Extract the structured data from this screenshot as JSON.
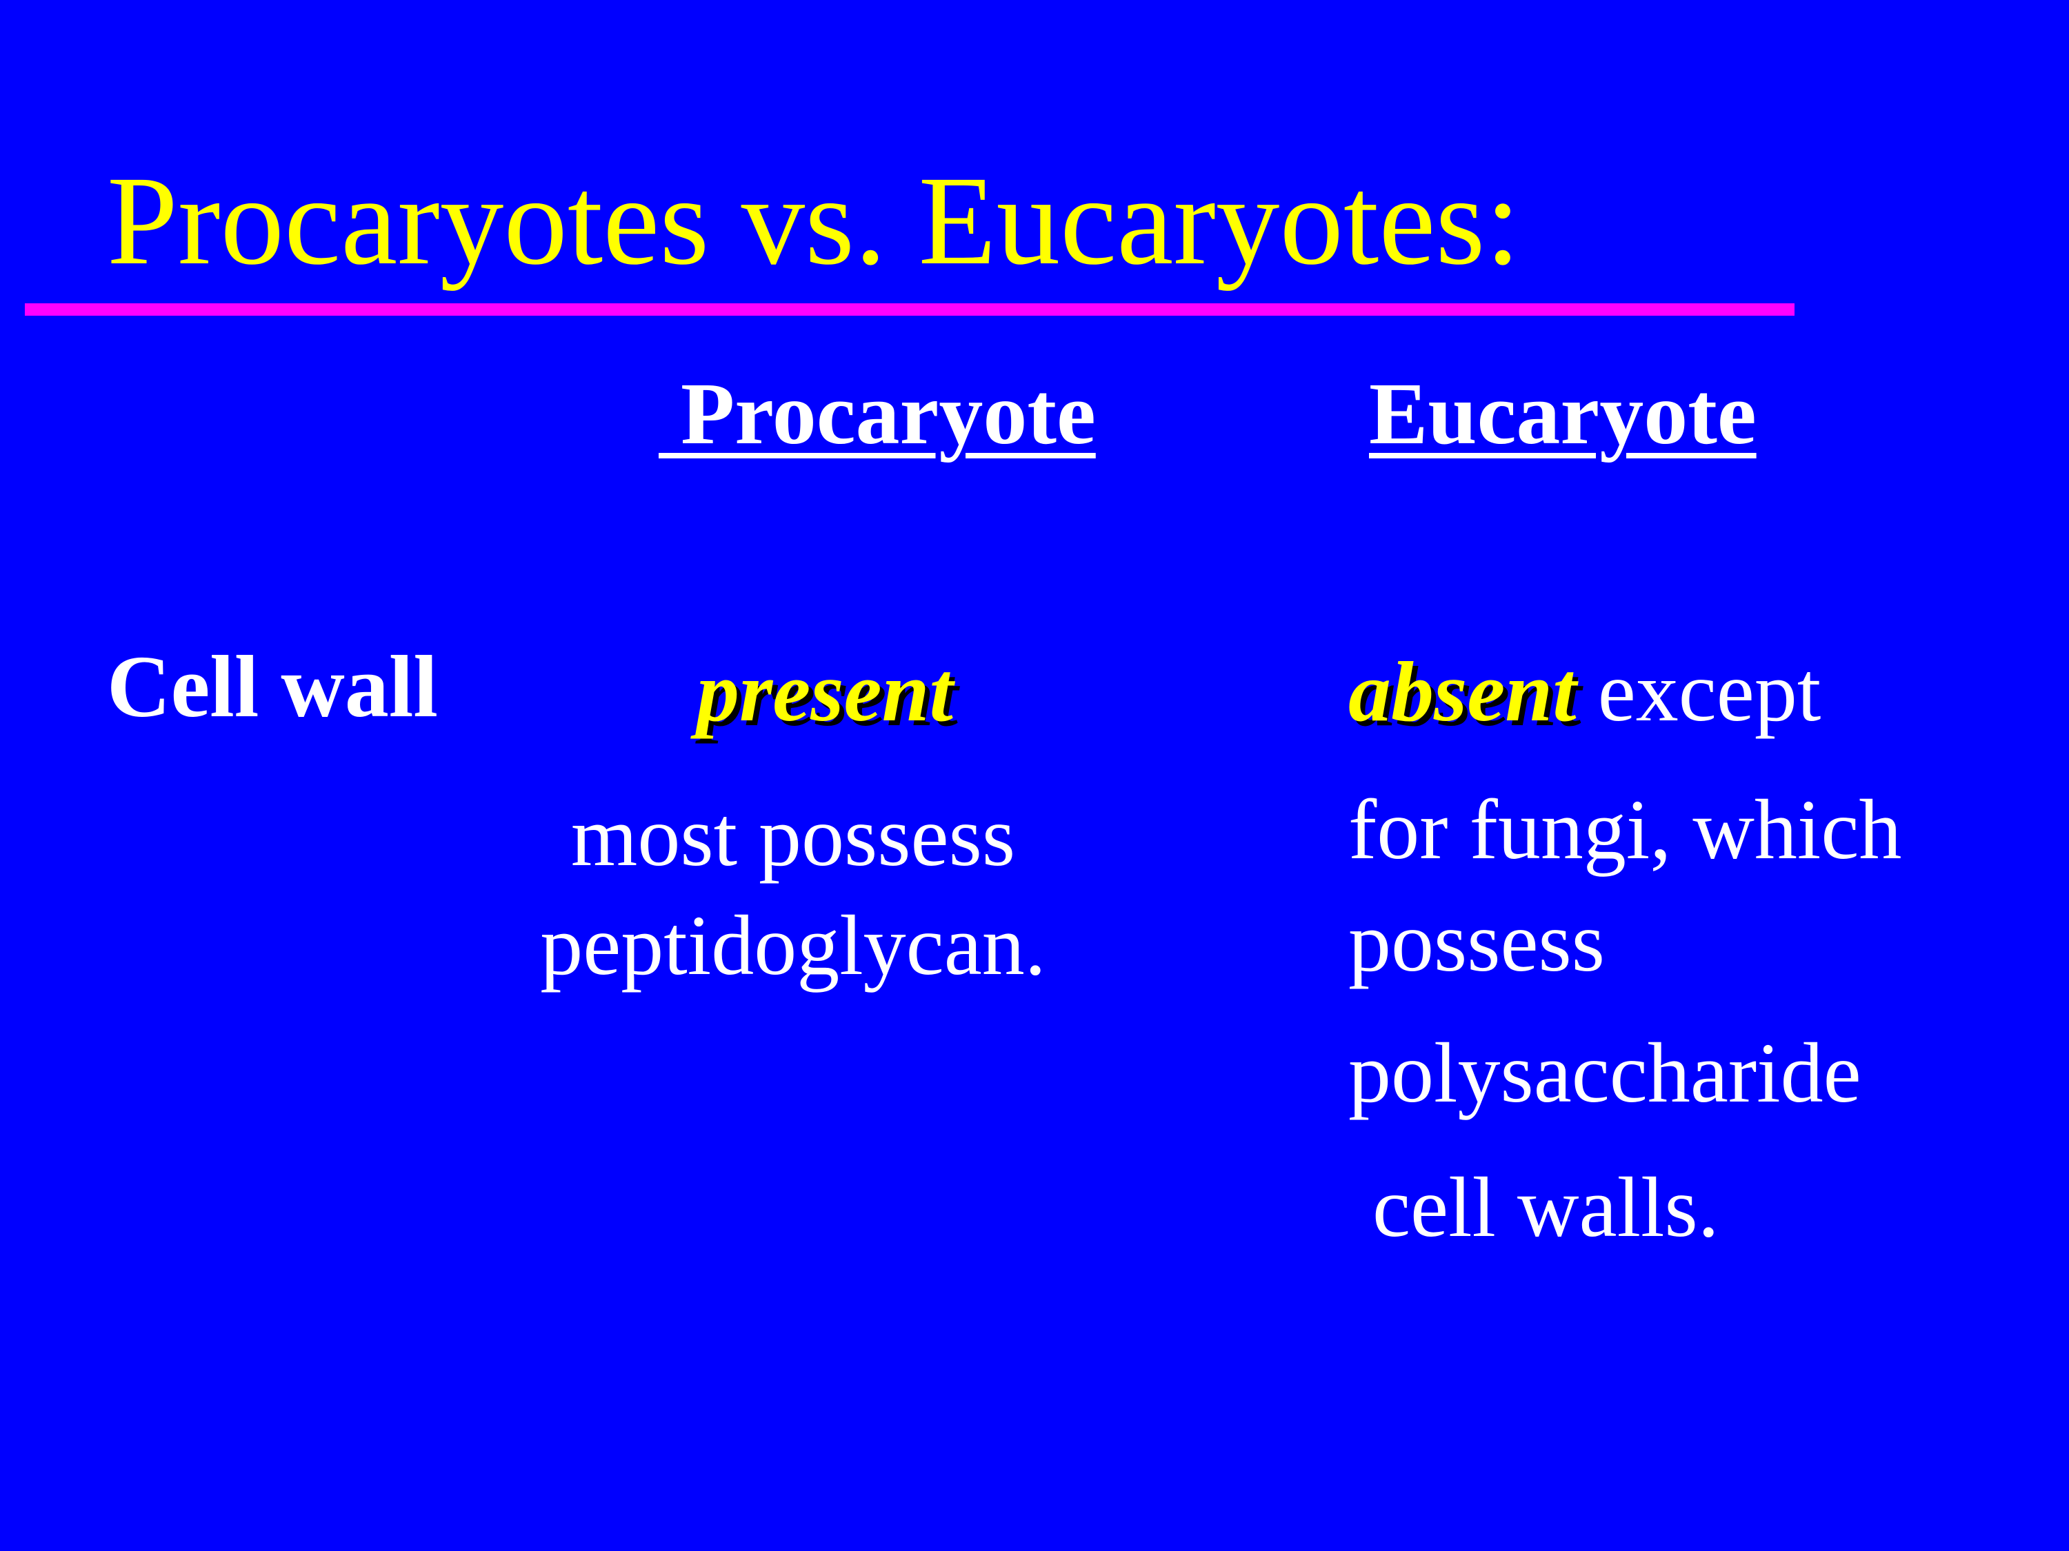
{
  "slide": {
    "title": "Procaryotes vs. Eucaryotes:",
    "columns": {
      "procaryote": " Procaryote",
      "eucaryote": "Eucaryote"
    },
    "rows": [
      {
        "label": "Cell wall",
        "procaryote": {
          "emphasis": "present",
          "lines": [
            "most possess",
            "peptidoglycan."
          ]
        },
        "eucaryote": {
          "emphasis": "absent",
          "first_line_rest": " except",
          "lines": [
            "for fungi, which",
            "possess",
            "polysaccharide",
            "cell walls."
          ]
        }
      }
    ]
  },
  "colors": {
    "background": "#0000ff",
    "title": "#ffff00",
    "rule": "#ff00ff",
    "text": "#ffffff",
    "emphasis": "#ffff00"
  }
}
